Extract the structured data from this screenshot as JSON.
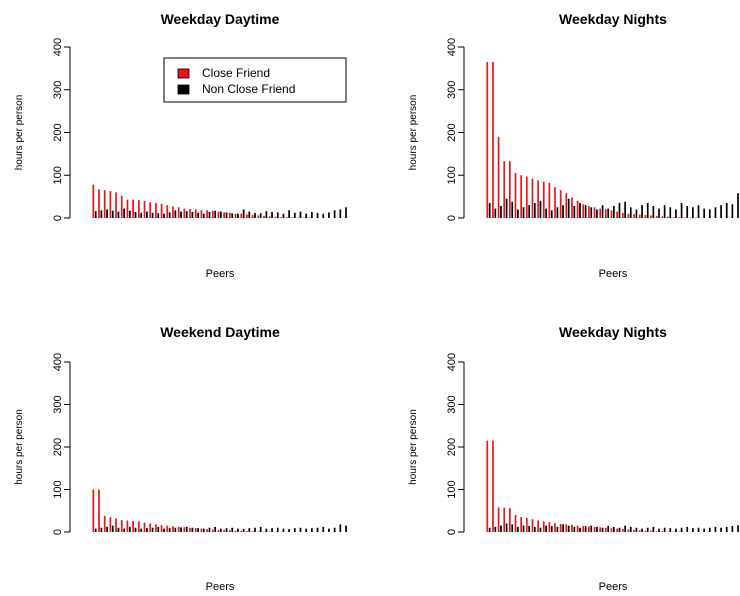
{
  "colors": {
    "close_friend": "#e8141e",
    "non_close_friend": "#000000"
  },
  "chart_data": [
    {
      "type": "bar",
      "title": "Weekday Daytime",
      "xlabel": "Peers",
      "ylabel": "hours per person",
      "ylim": [
        0,
        400
      ],
      "yticks": [
        0,
        100,
        200,
        300,
        400
      ],
      "legend": {
        "placement": "top-right",
        "entries": [
          "Close Friend",
          "Non Close Friend"
        ]
      },
      "series": [
        {
          "name": "Close Friend",
          "values": [
            78,
            67,
            65,
            63,
            60,
            52,
            43,
            43,
            42,
            40,
            37,
            35,
            33,
            30,
            27,
            25,
            22,
            21,
            20,
            18,
            18,
            17,
            15,
            13,
            12,
            10,
            10,
            8,
            7,
            6,
            5,
            4,
            3,
            2,
            2,
            2,
            1,
            1,
            1,
            0,
            0,
            0,
            0,
            0,
            0
          ]
        },
        {
          "name": "Non Close Friend",
          "values": [
            16,
            18,
            20,
            17,
            15,
            22,
            17,
            14,
            12,
            15,
            12,
            11,
            10,
            13,
            18,
            15,
            16,
            14,
            12,
            10,
            14,
            17,
            15,
            13,
            11,
            10,
            20,
            15,
            12,
            11,
            16,
            14,
            13,
            10,
            18,
            12,
            15,
            10,
            14,
            12,
            10,
            13,
            18,
            20,
            25
          ]
        }
      ]
    },
    {
      "type": "bar",
      "title": "Weekday Nights",
      "xlabel": "Peers",
      "ylabel": "hours per person",
      "ylim": [
        0,
        400
      ],
      "yticks": [
        0,
        100,
        200,
        300,
        400
      ],
      "series": [
        {
          "name": "Close Friend",
          "values": [
            365,
            365,
            190,
            133,
            133,
            105,
            100,
            97,
            92,
            88,
            85,
            82,
            72,
            65,
            58,
            48,
            40,
            32,
            28,
            25,
            22,
            20,
            18,
            15,
            12,
            10,
            9,
            8,
            7,
            6,
            5,
            4,
            3,
            2,
            2,
            1,
            1,
            1,
            0,
            0,
            0,
            0,
            0,
            0,
            0
          ]
        },
        {
          "name": "Non Close Friend",
          "values": [
            35,
            22,
            28,
            45,
            38,
            20,
            25,
            30,
            35,
            40,
            22,
            18,
            25,
            30,
            45,
            28,
            35,
            30,
            25,
            20,
            30,
            22,
            28,
            35,
            38,
            25,
            20,
            30,
            35,
            28,
            22,
            30,
            25,
            20,
            35,
            28,
            25,
            30,
            22,
            20,
            25,
            30,
            35,
            32,
            58
          ]
        }
      ]
    },
    {
      "type": "bar",
      "title": "Weekend Daytime",
      "xlabel": "Peers",
      "ylabel": "hours per person",
      "ylim": [
        0,
        400
      ],
      "yticks": [
        0,
        100,
        200,
        300,
        400
      ],
      "series": [
        {
          "name": "Close Friend",
          "values": [
            100,
            100,
            38,
            35,
            32,
            28,
            27,
            26,
            25,
            22,
            20,
            18,
            16,
            15,
            14,
            12,
            11,
            10,
            9,
            8,
            7,
            6,
            5,
            5,
            4,
            3,
            3,
            2,
            2,
            1,
            1,
            1,
            0,
            0,
            0,
            0,
            0,
            0,
            0,
            0,
            0,
            0,
            0,
            0,
            0
          ]
        },
        {
          "name": "Non Close Friend",
          "values": [
            8,
            10,
            12,
            15,
            10,
            8,
            12,
            10,
            8,
            9,
            10,
            12,
            8,
            9,
            10,
            11,
            12,
            10,
            9,
            8,
            10,
            12,
            8,
            9,
            10,
            8,
            7,
            9,
            10,
            12,
            8,
            9,
            10,
            8,
            7,
            9,
            10,
            8,
            9,
            10,
            12,
            8,
            10,
            18,
            15
          ]
        }
      ]
    },
    {
      "type": "bar",
      "title": "Weekday Nights",
      "xlabel": "Peers",
      "ylabel": "hours per person",
      "ylim": [
        0,
        400
      ],
      "yticks": [
        0,
        100,
        200,
        300,
        400
      ],
      "series": [
        {
          "name": "Close Friend",
          "values": [
            215,
            215,
            58,
            57,
            56,
            40,
            35,
            33,
            30,
            27,
            25,
            23,
            21,
            19,
            18,
            17,
            15,
            14,
            13,
            12,
            11,
            10,
            9,
            8,
            7,
            6,
            5,
            4,
            3,
            3,
            2,
            2,
            1,
            1,
            1,
            0,
            0,
            0,
            0,
            0,
            0,
            0,
            0,
            0,
            0
          ]
        },
        {
          "name": "Non Close Friend",
          "values": [
            10,
            12,
            15,
            20,
            18,
            12,
            15,
            14,
            12,
            10,
            15,
            14,
            12,
            18,
            15,
            12,
            10,
            14,
            15,
            12,
            10,
            14,
            12,
            10,
            15,
            12,
            10,
            8,
            10,
            12,
            8,
            10,
            9,
            8,
            10,
            12,
            9,
            10,
            8,
            10,
            12,
            10,
            12,
            14,
            16
          ]
        }
      ]
    }
  ]
}
